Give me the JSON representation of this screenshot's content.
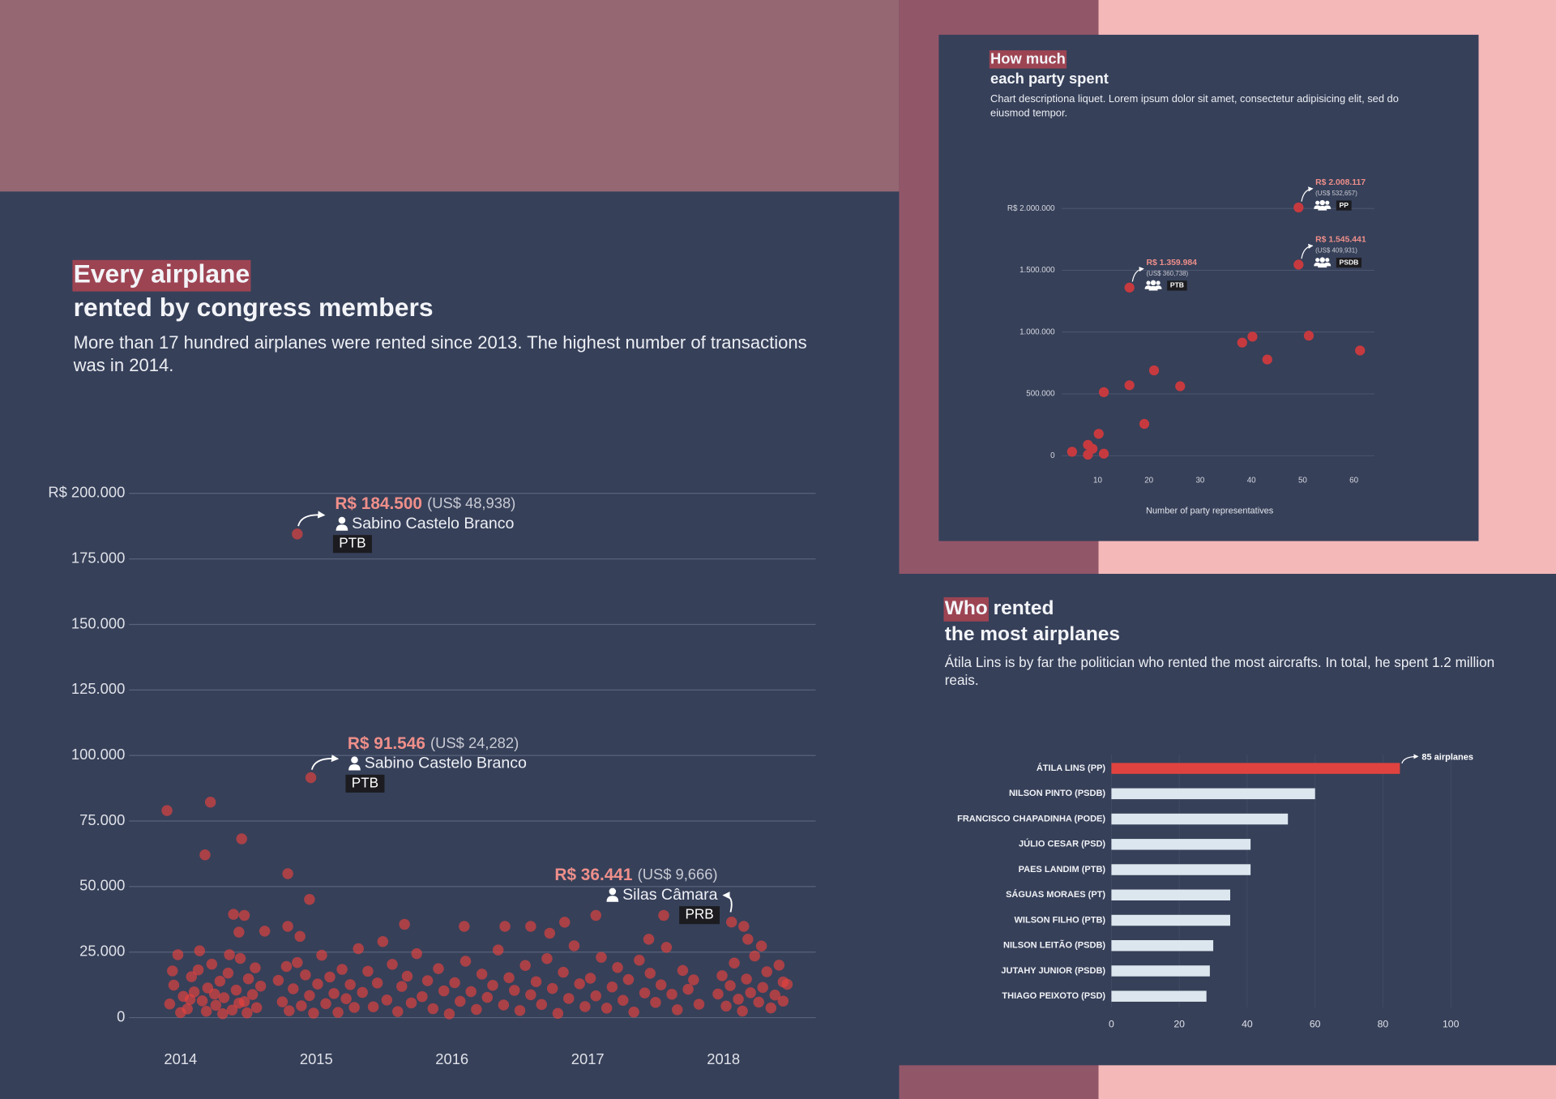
{
  "chart_data": [
    {
      "type": "scatter",
      "title": [
        [
          "Every airplane"
        ],
        [
          "rented by congress members"
        ]
      ],
      "highlight_first": true,
      "description": "More than 17 hundred airplanes were rented since 2013. The highest number of transactions was in 2014.",
      "color": "#e8423e",
      "grid": true,
      "xlim": [
        2013.62,
        2018.68
      ],
      "xticks": [
        2014,
        2015,
        2016,
        2017,
        2018
      ],
      "ylim": [
        0,
        200000
      ],
      "yticks": [
        {
          "value": 200000,
          "label": "R$ 200.000"
        },
        {
          "value": 175000,
          "label": "175.000"
        },
        {
          "value": 150000,
          "label": "150.000"
        },
        {
          "value": 125000,
          "label": "125.000"
        },
        {
          "value": 100000,
          "label": "100.000"
        },
        {
          "value": 75000,
          "label": "75.000"
        },
        {
          "value": 50000,
          "label": "50.000"
        },
        {
          "value": 25000,
          "label": "25.000"
        },
        0
      ],
      "x": [
        2013.92,
        2013.95,
        2013.98,
        2014.02,
        2014.05,
        2014.08,
        2014.1,
        2014.13,
        2014.16,
        2014.2,
        2014.23,
        2014.26,
        2014.29,
        2014.32,
        2014.35,
        2014.38,
        2014.41,
        2014.44,
        2014.47,
        2014.5,
        2014.53,
        2014.56,
        2014.59,
        2013.94,
        2014,
        2014.07,
        2014.14,
        2014.19,
        2014.25,
        2014.31,
        2014.36,
        2014.43,
        2014.49,
        2014.55,
        2014.72,
        2014.75,
        2014.78,
        2014.8,
        2014.83,
        2014.86,
        2014.89,
        2014.92,
        2014.95,
        2014.98,
        2015.01,
        2015.04,
        2015.07,
        2015.1,
        2015.13,
        2015.16,
        2015.19,
        2015.22,
        2015.25,
        2015.28,
        2015.31,
        2015.34,
        2015.38,
        2015.42,
        2015.45,
        2015.49,
        2015.52,
        2015.56,
        2015.6,
        2015.63,
        2015.67,
        2015.7,
        2015.74,
        2015.78,
        2015.82,
        2015.86,
        2015.9,
        2015.94,
        2015.98,
        2016.02,
        2016.06,
        2016.1,
        2016.14,
        2016.18,
        2016.22,
        2016.26,
        2016.3,
        2016.34,
        2016.38,
        2016.42,
        2016.46,
        2016.5,
        2016.54,
        2016.58,
        2016.62,
        2016.66,
        2016.7,
        2016.74,
        2016.78,
        2016.82,
        2016.86,
        2016.9,
        2016.94,
        2016.98,
        2017.02,
        2017.06,
        2017.1,
        2017.14,
        2017.18,
        2017.22,
        2017.26,
        2017.3,
        2017.34,
        2017.38,
        2017.42,
        2017.46,
        2017.5,
        2017.54,
        2017.58,
        2017.62,
        2017.66,
        2017.7,
        2017.74,
        2017.78,
        2017.82,
        2017.96,
        2017.99,
        2018.02,
        2018.05,
        2018.08,
        2018.11,
        2018.14,
        2018.17,
        2018.2,
        2018.23,
        2018.26,
        2018.29,
        2018.32,
        2018.35,
        2018.38,
        2018.41,
        2018.44,
        2018.47,
        2013.9,
        2014.18,
        2014.22,
        2014.45,
        2014.79,
        2014.95,
        2014.39,
        2014.47,
        2014.43,
        2014.62,
        2014.79,
        2014.88,
        2016.09,
        2016.39,
        2016.58,
        2016.72,
        2016.83,
        2017.06,
        2017.45,
        2017.56,
        2018.15,
        2018.18,
        2018.28,
        2018.44,
        2015.65
      ],
      "values": [
        5200,
        12400,
        24000,
        8100,
        3300,
        15600,
        9800,
        18200,
        6400,
        11300,
        20400,
        4700,
        13900,
        7600,
        17000,
        2900,
        10500,
        22600,
        6100,
        14800,
        8800,
        3800,
        12000,
        17800,
        1900,
        6900,
        25500,
        2400,
        9000,
        1500,
        24000,
        5500,
        1800,
        19000,
        14200,
        6000,
        19500,
        2600,
        11000,
        21000,
        4500,
        16300,
        8400,
        1700,
        12800,
        23800,
        5300,
        15500,
        9200,
        2000,
        18400,
        7200,
        12600,
        3900,
        26300,
        9600,
        17700,
        4100,
        13200,
        29000,
        6700,
        20300,
        2300,
        11900,
        15800,
        5600,
        24400,
        8000,
        14100,
        3400,
        18700,
        10200,
        1400,
        13300,
        6200,
        21500,
        9900,
        3100,
        16600,
        7700,
        12300,
        25800,
        4800,
        15200,
        10400,
        2700,
        19900,
        8700,
        13700,
        5000,
        22500,
        11100,
        1600,
        17300,
        7300,
        27400,
        12900,
        4200,
        15000,
        8300,
        23000,
        3600,
        11700,
        19100,
        6600,
        14500,
        2100,
        21900,
        9400,
        16900,
        5800,
        12500,
        26800,
        8900,
        3000,
        18000,
        10800,
        14400,
        5100,
        9000,
        16000,
        4400,
        12200,
        20800,
        7000,
        2500,
        14700,
        9500,
        23500,
        5900,
        11500,
        17500,
        3700,
        8600,
        20000,
        6300,
        12700,
        79000,
        62100,
        82200,
        68200,
        54900,
        45100,
        39400,
        39000,
        32600,
        33000,
        34800,
        31000,
        34800,
        34800,
        34800,
        32200,
        36400,
        39000,
        29900,
        39000,
        34800,
        29900,
        27300,
        13600,
        35600
      ],
      "annotations": [
        {
          "x": 2014.86,
          "value": 184500,
          "value_label": "R$ 184.500",
          "usd": "(US$ 48,938)",
          "name": "Sabino Castelo Branco",
          "party": "PTB"
        },
        {
          "x": 2014.96,
          "value": 91546,
          "value_label": "R$ 91.546",
          "usd": "(US$ 24,282)",
          "name": "Sabino Castelo Branco",
          "party": "PTB"
        },
        {
          "x": 2018.06,
          "value": 36441,
          "value_label": "R$ 36.441",
          "usd": "(US$ 9,666)",
          "name": "Silas Câmara",
          "party": "PRB"
        }
      ]
    },
    {
      "type": "scatter",
      "title": [
        [
          "How much"
        ],
        [
          "each party spent"
        ]
      ],
      "highlight_first": true,
      "description": "Chart descriptiona liquet. Lorem ipsum dolor sit amet, consectetur adipisicing elit, sed do eiusmod tempor.",
      "color": "#c63a3f",
      "grid": true,
      "xlabel": "Number of party representatives",
      "xlim": [
        3,
        64
      ],
      "xticks": [
        10,
        20,
        30,
        40,
        50,
        60
      ],
      "ylim": [
        0,
        2000000
      ],
      "yticks": [
        {
          "value": 2000000,
          "label": "R$ 2.000.000"
        },
        {
          "value": 1500000,
          "label": "1.500.000"
        },
        {
          "value": 1000000,
          "label": "1.000.000"
        },
        {
          "value": 500000,
          "label": "500.000"
        },
        0
      ],
      "x": [
        5,
        8.1,
        8.1,
        9,
        10.2,
        11.2,
        11.2,
        16.2,
        19.1,
        21,
        26.1,
        38.2,
        40.2,
        43.1,
        51.2,
        61.2
      ],
      "values": [
        32000,
        88000,
        8000,
        56000,
        177000,
        16000,
        514000,
        570000,
        257000,
        690000,
        562000,
        915000,
        963000,
        778000,
        971000,
        851000
      ],
      "annotations": [
        {
          "x": 49.2,
          "value": 2008117,
          "value_label": "R$ 2.008.117",
          "usd": "(US$ 532,657)",
          "party": "PP"
        },
        {
          "x": 49.2,
          "value": 1545441,
          "value_label": "R$ 1.545.441",
          "usd": "(US$ 409,931)",
          "party": "PSDB"
        },
        {
          "x": 16.2,
          "value": 1359984,
          "value_label": "R$ 1.359.984",
          "usd": "(US$ 360,738)",
          "party": "PTB"
        }
      ]
    },
    {
      "type": "bar",
      "title": [
        [
          "Who",
          "rented"
        ],
        [
          "the most airplanes"
        ]
      ],
      "highlight_first": true,
      "description": "Átila Lins is by far the politician who rented the most aircrafts. In total, he spent 1.2 million reais.",
      "grid": true,
      "xlim": [
        0,
        100
      ],
      "xticks": [
        0,
        20,
        40,
        60,
        80,
        100
      ],
      "categories": [
        "ÁTILA LINS (PP)",
        "NILSON PINTO (PSDB)",
        "FRANCISCO CHAPADINHA (PODE)",
        "JÚLIO CESAR (PSD)",
        "PAES LANDIM (PTB)",
        "SÁGUAS MORAES (PT)",
        "WILSON FILHO (PTB)",
        "NILSON LEITÃO (PSDB)",
        "JUTAHY JUNIOR (PSDB)",
        "THIAGO PEIXOTO (PSD)"
      ],
      "values": [
        85,
        60,
        52,
        41,
        41,
        35,
        35,
        30,
        29,
        28
      ],
      "value_labels": [
        "85 airplanes",
        null,
        null,
        null,
        null,
        null,
        null,
        null,
        null,
        null
      ],
      "colors": [
        "#e0433f",
        "#dce6ee",
        "#dce6ee",
        "#dce6ee",
        "#dce6ee",
        "#dce6ee",
        "#dce6ee",
        "#dce6ee",
        "#dce6ee",
        "#dce6ee"
      ]
    }
  ]
}
